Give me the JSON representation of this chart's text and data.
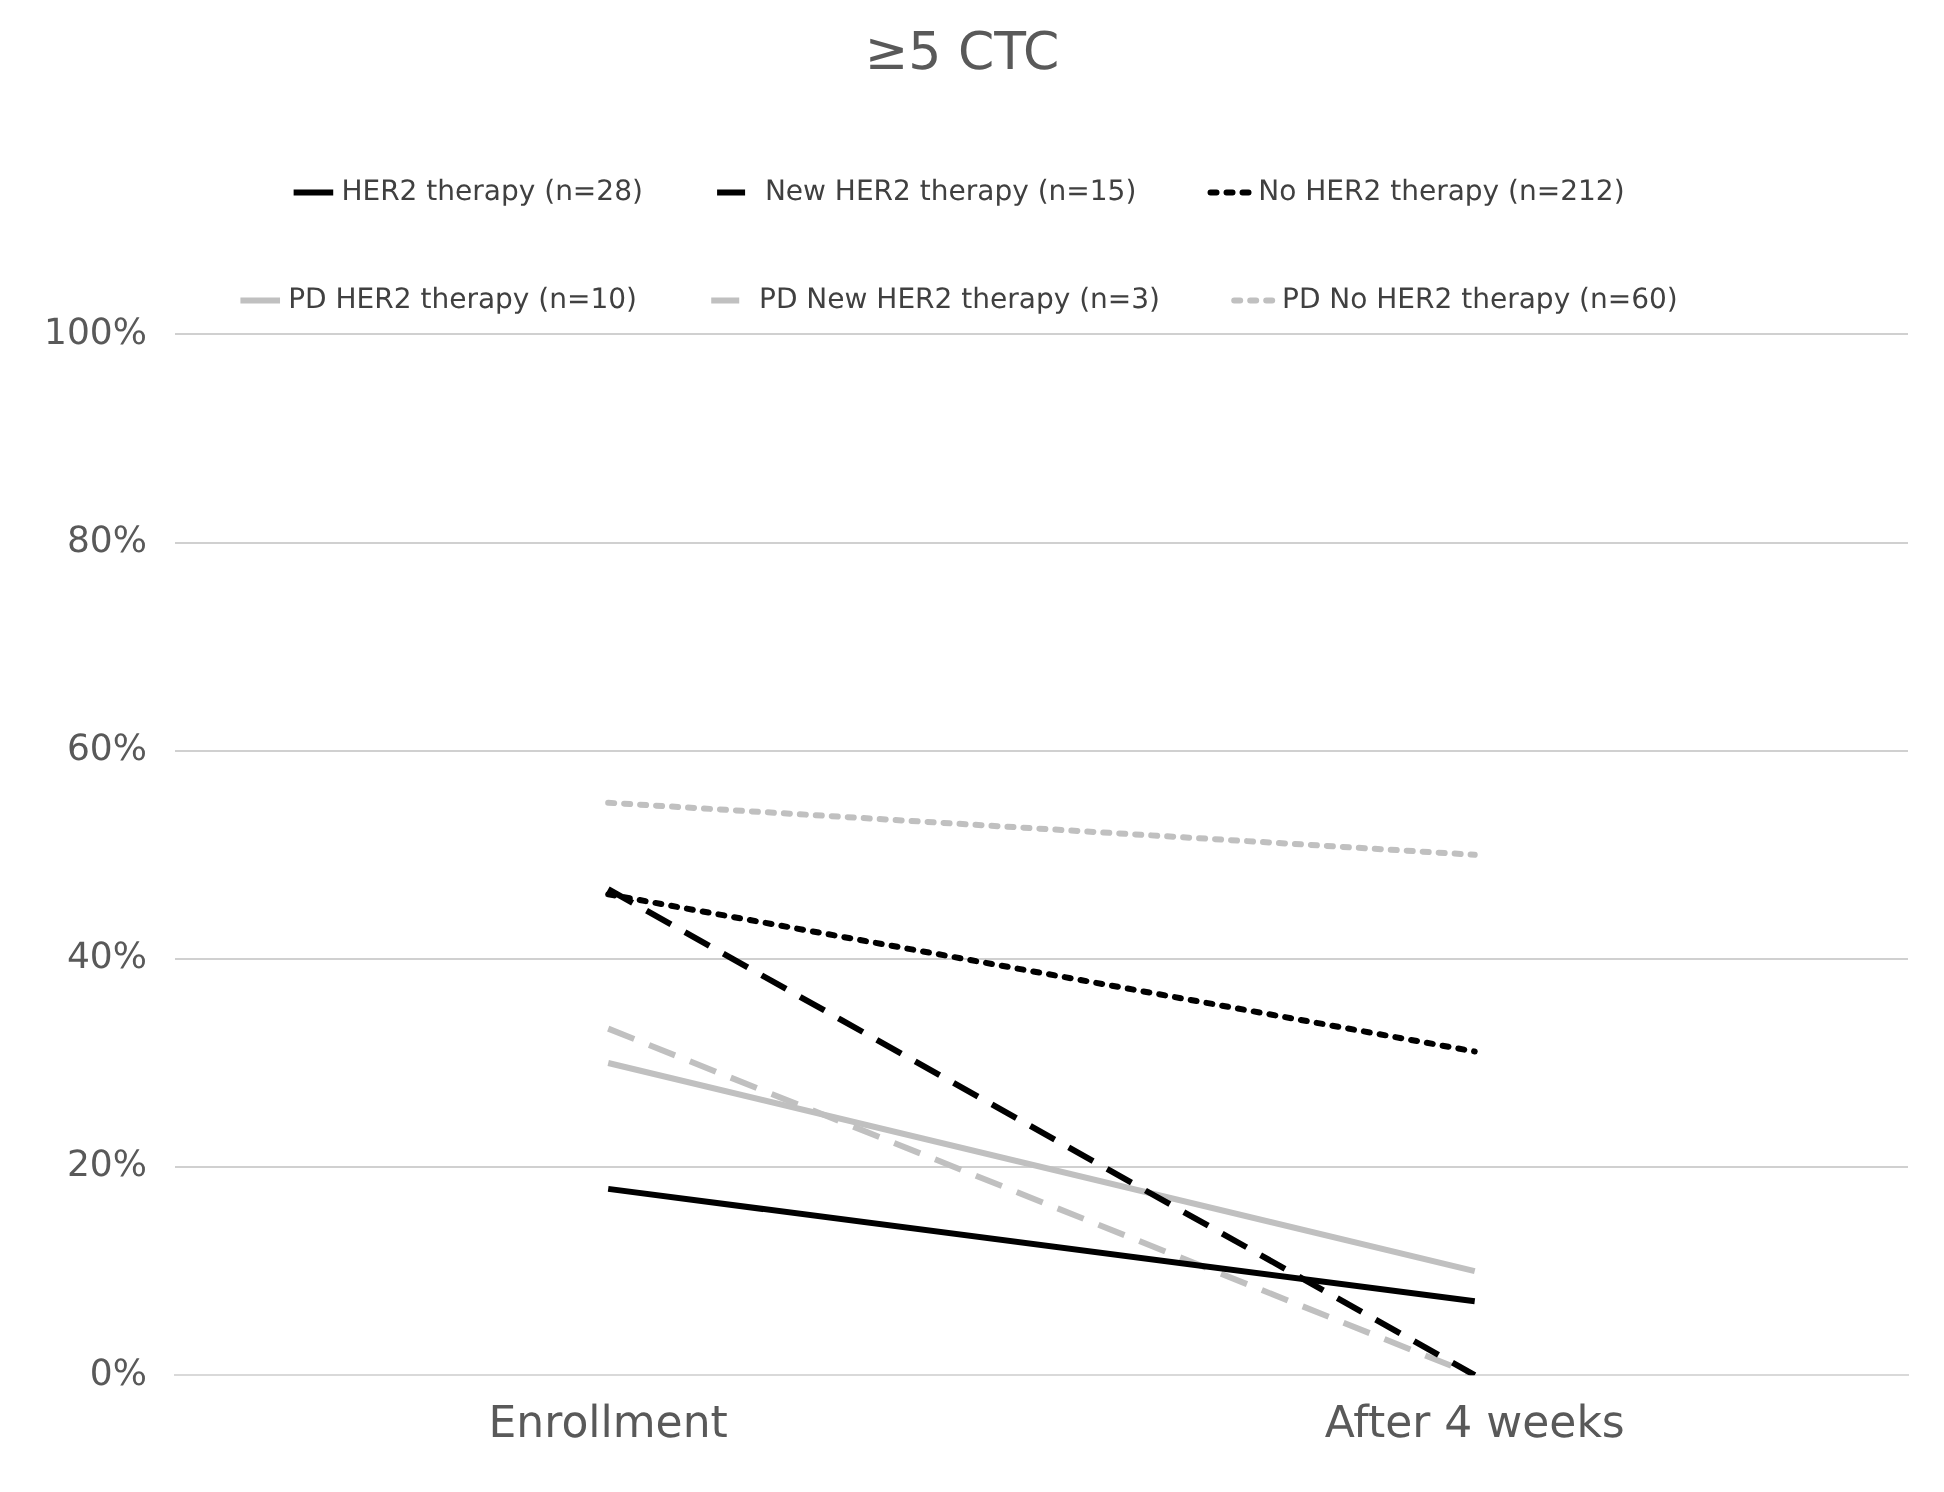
{
  "chart_data": {
    "type": "line",
    "title": "≥5 CTC",
    "categories": [
      "Enrollment",
      "After 4 weeks"
    ],
    "series": [
      {
        "name": "HER2 therapy (n=28)",
        "color": "#000000",
        "line_style": "solid",
        "values": [
          17.9,
          7.1
        ]
      },
      {
        "name": "New HER2 therapy (n=15)",
        "color": "#000000",
        "line_style": "dashed",
        "values": [
          46.7,
          0
        ]
      },
      {
        "name": "No HER2 therapy (n=212)",
        "color": "#000000",
        "line_style": "dotted",
        "values": [
          46.2,
          31.1
        ]
      },
      {
        "name": "PD HER2 therapy (n=10)",
        "color": "#c0c0c0",
        "line_style": "solid",
        "values": [
          30,
          10
        ]
      },
      {
        "name": "PD New HER2 therapy (n=3)",
        "color": "#c0c0c0",
        "line_style": "dashed",
        "values": [
          33.3,
          0
        ]
      },
      {
        "name": "PD No HER2 therapy (n=60)",
        "color": "#c0c0c0",
        "line_style": "dotted",
        "values": [
          55,
          50
        ]
      }
    ],
    "ylim": [
      0,
      100
    ],
    "yticks": [
      {
        "value": 0,
        "label": "0%"
      },
      {
        "value": 20,
        "label": "20%"
      },
      {
        "value": 40,
        "label": "40%"
      },
      {
        "value": 60,
        "label": "60%"
      },
      {
        "value": 80,
        "label": "80%"
      },
      {
        "value": 100,
        "label": "100%"
      }
    ],
    "grid": "y",
    "legend": "top",
    "marker": "none"
  }
}
